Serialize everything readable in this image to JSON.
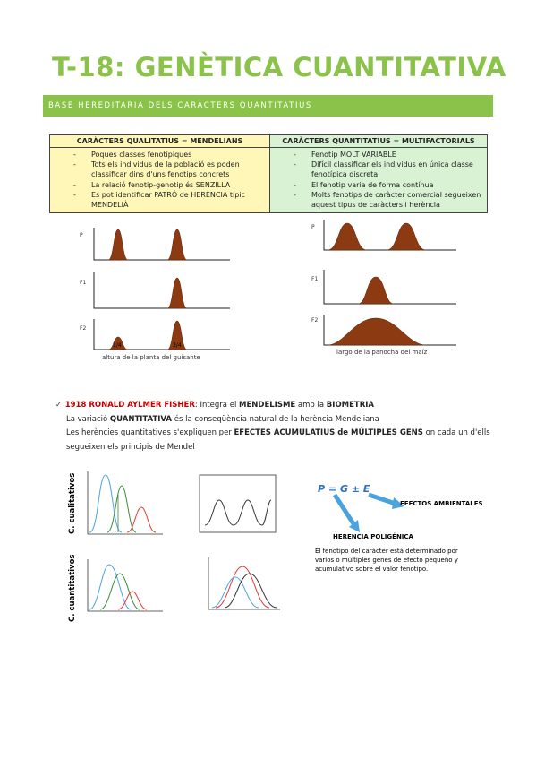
{
  "title": "T-18: GENÈTICA CUANTITATIVA",
  "section_banner": "BASE HEREDITARIA DELS CARÀCTERS QUANTITATIUS",
  "table": {
    "qualitative": {
      "header": "CARÀCTERS QUALITATIUS = MENDELIANS",
      "items": [
        "Poques classes fenotípiques",
        "Tots els individus de la població es poden classificar dins d'uns fenotips concrets",
        "La relació fenotip-genotip és SENZILLA",
        "Es pot identificar PATRÓ de HERÈNCIA típic MENDELIÀ"
      ]
    },
    "quantitative": {
      "header": "CARÀCTERS QUANTITATIUS = MULTIFACTORIALS",
      "items": [
        "Fenotip MOLT VARIABLE",
        "Difícil classificar els individus en única classe fenotípica discreta",
        "El fenotip varia de forma contínua",
        "Molts fenotips de caràcter comercial segueixen aquest tipus de caràcters i herència"
      ]
    }
  },
  "figure_left": {
    "row_labels": [
      "P",
      "F1",
      "F2"
    ],
    "f2_labels": [
      "1/4",
      "3/4"
    ],
    "caption": "altura de la planta del guisante"
  },
  "figure_right": {
    "row_labels": [
      "P",
      "F1",
      "F2"
    ],
    "caption": "largo de la panocha del maíz"
  },
  "fisher": {
    "year_name": "1918 RONALD AYLMER FISHER",
    "intro": ": Integra el ",
    "mendelism": "MENDELISME",
    "amb": " amb la ",
    "biometria": "BIOMETRIA",
    "line2_a": "La variació ",
    "line2_b": "QUANTITATIVA",
    "line2_c": " és la conseqüència natural de la herència Mendeliana",
    "line3_a": "Les herències quantitatives s'expliquen per ",
    "line3_b": "EFECTES ACUMULATIUS de MÚLTIPLES GENS",
    "line3_c": " on cada un d'ells",
    "line4": "segueixen els principis de Mendel"
  },
  "side_labels": {
    "qualitative": "C. cualitativos",
    "quantitative": "C. cuantitativos"
  },
  "formula": "P = G ± E",
  "efectos": "EFECTOS AMBIENTALES",
  "herencia": "HERENCIA POLIGÉNICA",
  "fenotip_text": "El fenotipo del carácter está determinado por varios o múltiples genes de efecto pequeño y acumulativo sobre el valor fenotipo.",
  "colors": {
    "accent": "#8bc34a",
    "qualitative_bg": "#fff7b8",
    "quantitative_bg": "#d9f2d3",
    "curve_fill": "#8b3a12",
    "formula_blue": "#2e6fc4",
    "arrow_blue": "#4aa3df"
  }
}
